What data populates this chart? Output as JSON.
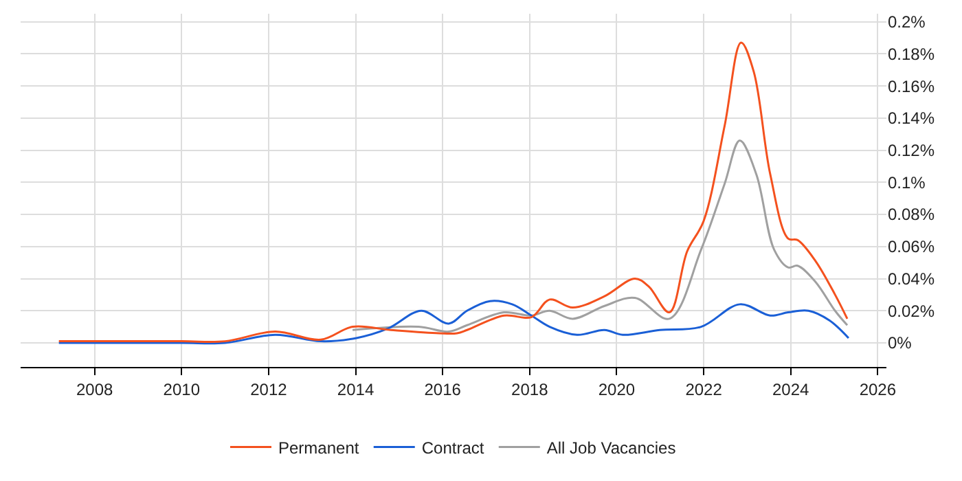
{
  "chart_data": {
    "type": "line",
    "xlim": [
      2006.3,
      2026.2
    ],
    "ylim": [
      -0.015,
      0.205
    ],
    "xticks": [
      2008,
      2010,
      2012,
      2014,
      2016,
      2018,
      2020,
      2022,
      2024,
      2026
    ],
    "yticks": [
      {
        "value": 0,
        "label": "0%"
      },
      {
        "value": 0.02,
        "label": "0.02%"
      },
      {
        "value": 0.04,
        "label": "0.04%"
      },
      {
        "value": 0.06,
        "label": "0.06%"
      },
      {
        "value": 0.08,
        "label": "0.08%"
      },
      {
        "value": 0.1,
        "label": "0.1%"
      },
      {
        "value": 0.12,
        "label": "0.12%"
      },
      {
        "value": 0.14,
        "label": "0.14%"
      },
      {
        "value": 0.16,
        "label": "0.16%"
      },
      {
        "value": 0.18,
        "label": "0.18%"
      },
      {
        "value": 0.2,
        "label": "0.2%"
      }
    ],
    "grid": true,
    "legend": "bottom",
    "marker": "none",
    "line_style": "solid",
    "series": [
      {
        "name": "Permanent",
        "color": "#f4511e",
        "x": [
          2007.18,
          2010,
          2011,
          2012.15,
          2013.2,
          2013.93,
          2014.81,
          2015.92,
          2016.33,
          2016.56,
          2017.41,
          2018.04,
          2018.46,
          2018.99,
          2019.72,
          2020.42,
          2020.74,
          2021.21,
          2021.62,
          2022.0,
          2022.48,
          2022.86,
          2023.15,
          2023.53,
          2023.94,
          2024.16,
          2024.57,
          2025.02,
          2025.3
        ],
        "values": [
          0.001,
          0.001,
          0.001,
          0.007,
          0.002,
          0.01,
          0.008,
          0.006,
          0.006,
          0.008,
          0.017,
          0.016,
          0.027,
          0.022,
          0.029,
          0.04,
          0.035,
          0.019,
          0.057,
          0.076,
          0.135,
          0.187,
          0.169,
          0.105,
          0.065,
          0.064,
          0.051,
          0.03,
          0.015
        ]
      },
      {
        "name": "Contract",
        "color": "#1a5fd6",
        "x": [
          2007.18,
          2008,
          2010,
          2011,
          2012.15,
          2013.2,
          2014.02,
          2014.75,
          2015.51,
          2016.14,
          2016.56,
          2017.09,
          2017.6,
          2018.04,
          2018.46,
          2019.09,
          2019.72,
          2020.14,
          2020.99,
          2021.94,
          2022.83,
          2023.53,
          2023.94,
          2024.41,
          2024.89,
          2025.33
        ],
        "values": [
          0,
          0,
          0,
          0,
          0.005,
          0.001,
          0.003,
          0.009,
          0.02,
          0.012,
          0.02,
          0.026,
          0.024,
          0.017,
          0.01,
          0.005,
          0.008,
          0.005,
          0.008,
          0.01,
          0.024,
          0.017,
          0.019,
          0.02,
          0.014,
          0.003
        ]
      },
      {
        "name": "All Job Vacancies",
        "color": "#a0a0a0",
        "x": [
          2013.93,
          2015.45,
          2016.14,
          2016.56,
          2017.41,
          2018.04,
          2018.46,
          2018.99,
          2019.72,
          2020.42,
          2021.21,
          2021.94,
          2022.48,
          2022.83,
          2023.21,
          2023.62,
          2023.94,
          2024.16,
          2024.57,
          2025.02,
          2025.3
        ],
        "values": [
          0.008,
          0.01,
          0.007,
          0.011,
          0.019,
          0.017,
          0.02,
          0.015,
          0.023,
          0.028,
          0.015,
          0.058,
          0.099,
          0.126,
          0.105,
          0.058,
          0.047,
          0.048,
          0.038,
          0.02,
          0.011
        ]
      }
    ]
  }
}
